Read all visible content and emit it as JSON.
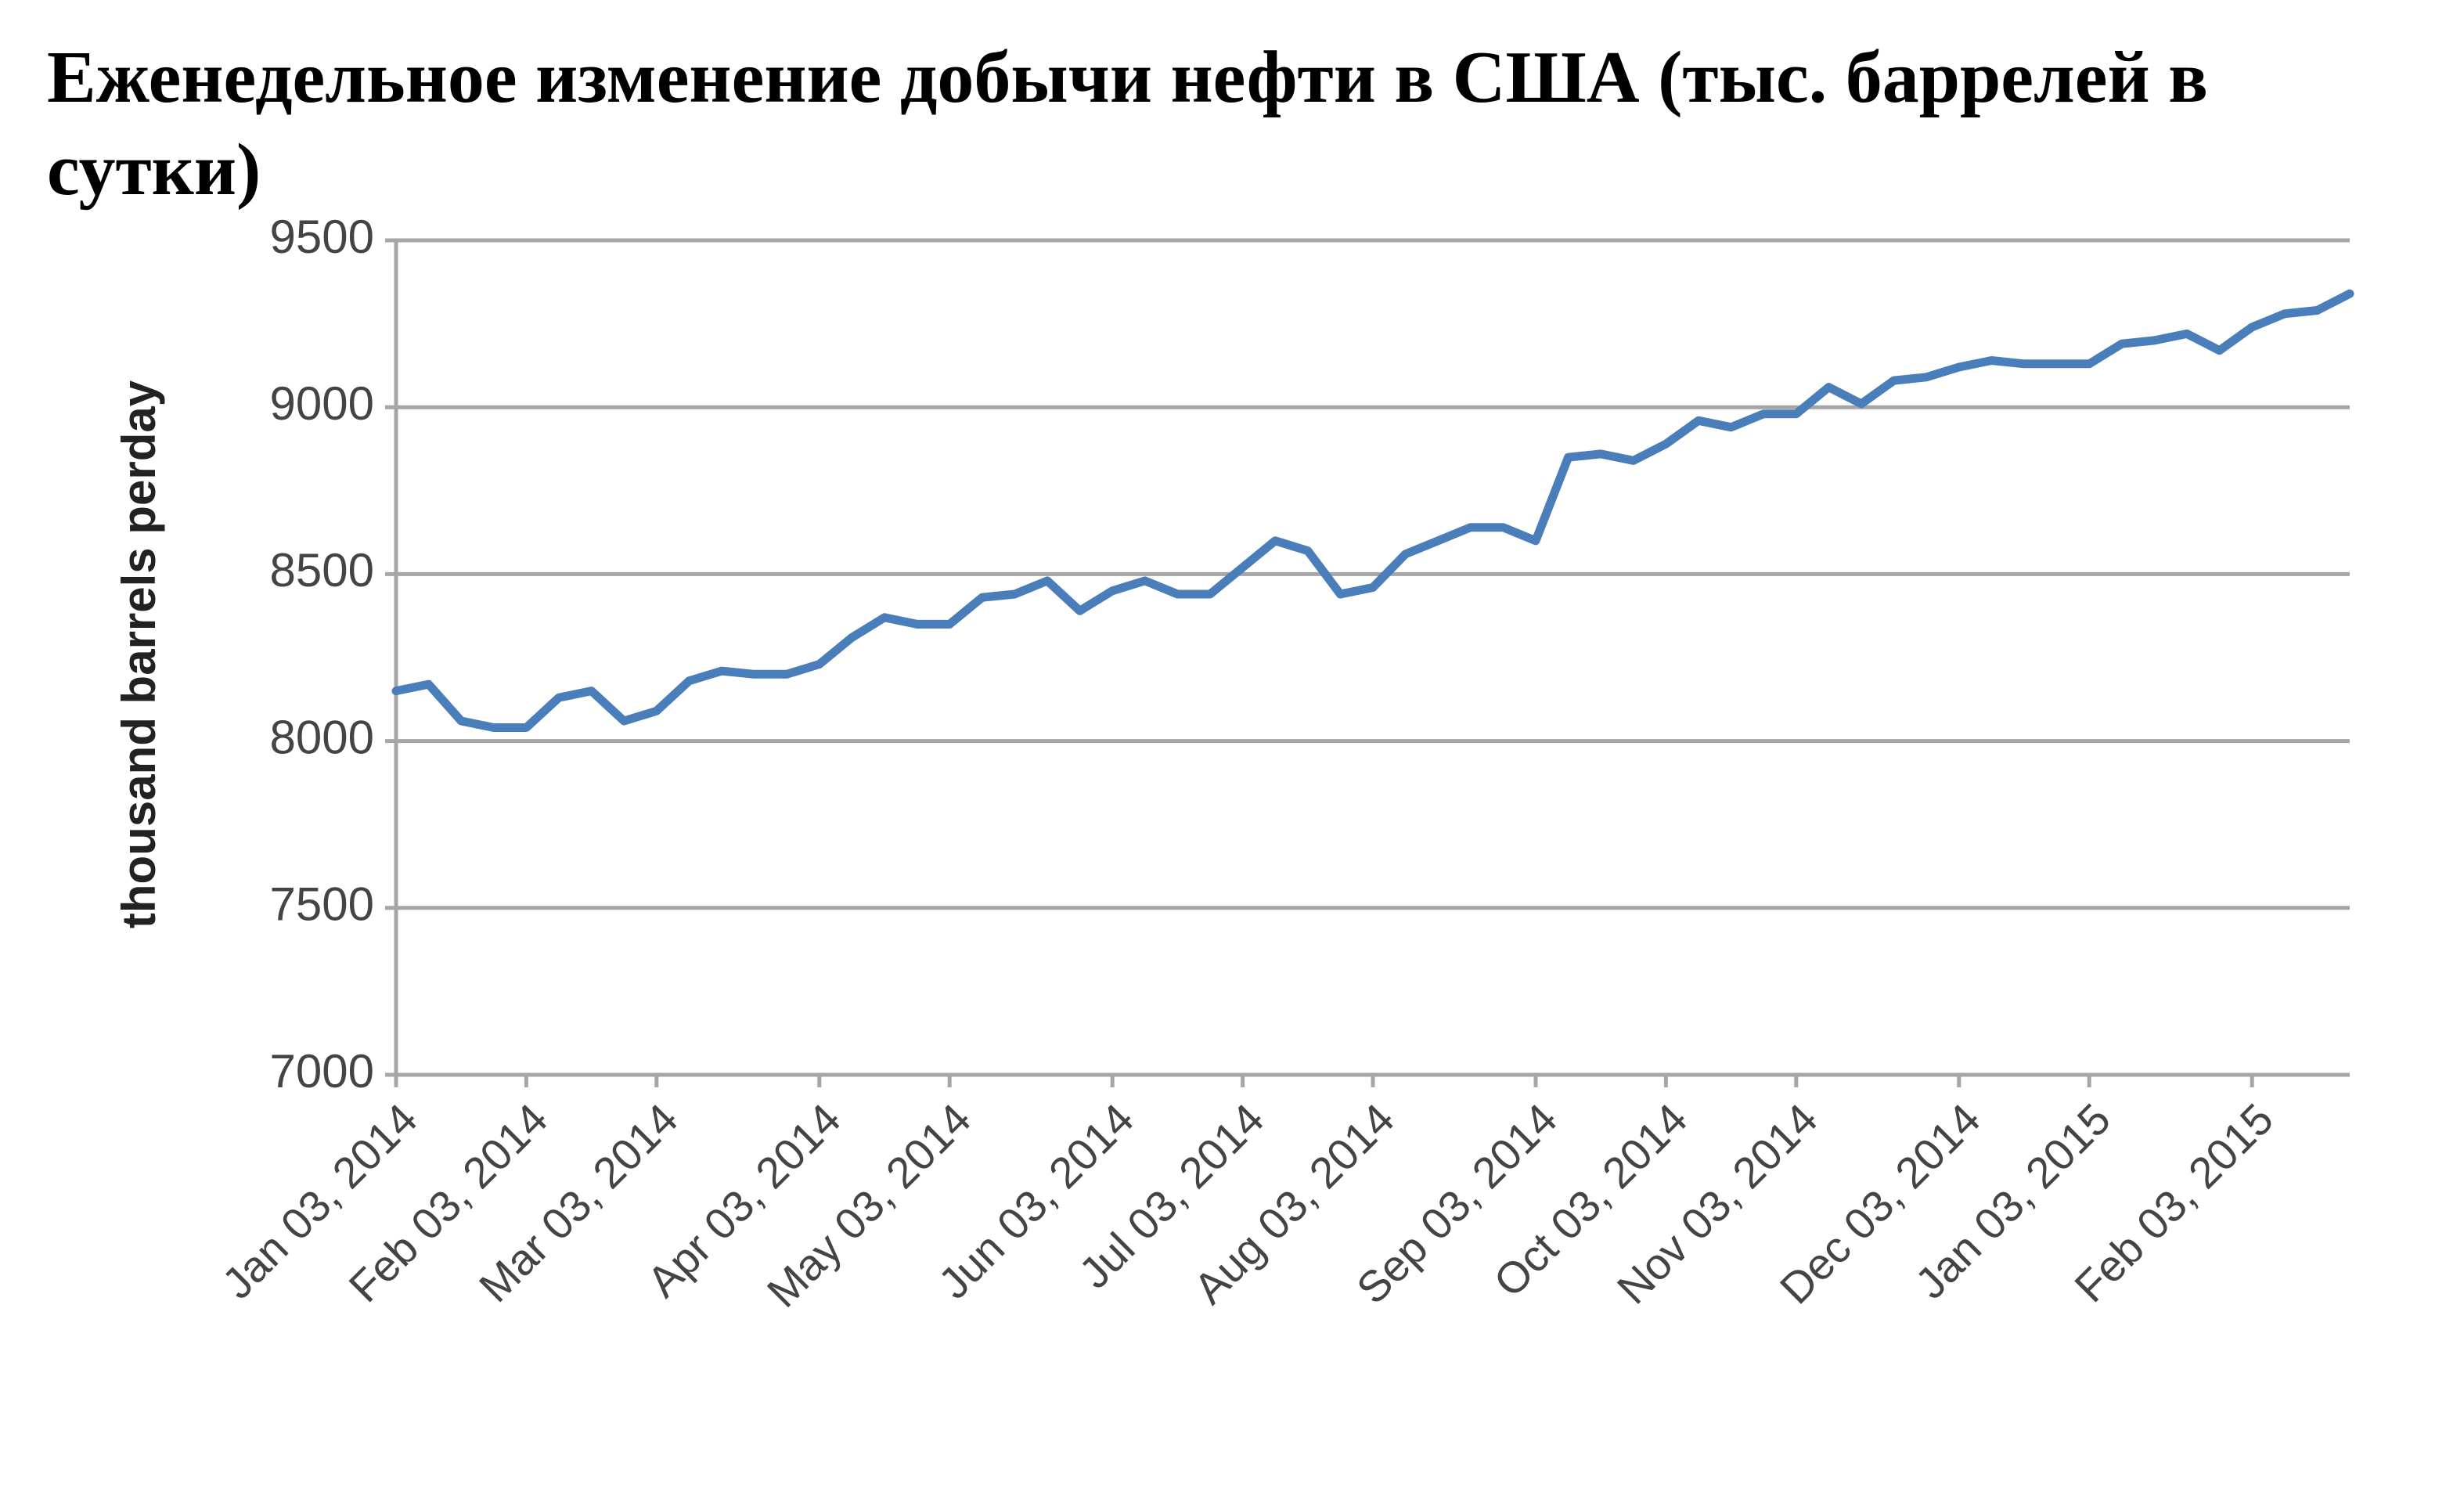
{
  "chart_data": {
    "type": "line",
    "title": "Еженедельное изменение добычи нефти в США (тыс. баррелей в сутки)",
    "y_label": "thousand barrels perday",
    "categories": [
      "Jan 03, 2014",
      null,
      null,
      null,
      "Feb 03, 2014",
      null,
      null,
      null,
      "Mar 03, 2014",
      null,
      null,
      null,
      null,
      "Apr 03, 2014",
      null,
      null,
      null,
      "May 03, 2014",
      null,
      null,
      null,
      null,
      "Jun 03, 2014",
      null,
      null,
      null,
      "Jul 03, 2014",
      null,
      null,
      null,
      "Aug 03, 2014",
      null,
      null,
      null,
      null,
      "Sep 03, 2014",
      null,
      null,
      null,
      "Oct 03, 2014",
      null,
      null,
      null,
      "Nov 03, 2014",
      null,
      null,
      null,
      null,
      "Dec 03, 2014",
      null,
      null,
      null,
      "Jan 03, 2015",
      null,
      null,
      null,
      null,
      "Feb 03, 2015",
      null,
      null,
      null
    ],
    "values": [
      8150,
      8170,
      8060,
      8040,
      8040,
      8130,
      8150,
      8060,
      8090,
      8180,
      8210,
      8200,
      8200,
      8230,
      8310,
      8370,
      8350,
      8350,
      8430,
      8440,
      8480,
      8390,
      8450,
      8480,
      8440,
      8440,
      8520,
      8600,
      8570,
      8440,
      8460,
      8560,
      8600,
      8640,
      8640,
      8600,
      8850,
      8860,
      8840,
      8890,
      8960,
      8940,
      8980,
      8980,
      9060,
      9010,
      9080,
      9090,
      9120,
      9140,
      9130,
      9130,
      9130,
      9190,
      9200,
      9220,
      9170,
      9240,
      9280,
      9290,
      9340
    ],
    "color": "#4a7ebb",
    "ylim": [
      7000,
      9500
    ],
    "yticks": [
      7000,
      7500,
      8000,
      8500,
      9000,
      9500
    ],
    "grid": true
  }
}
